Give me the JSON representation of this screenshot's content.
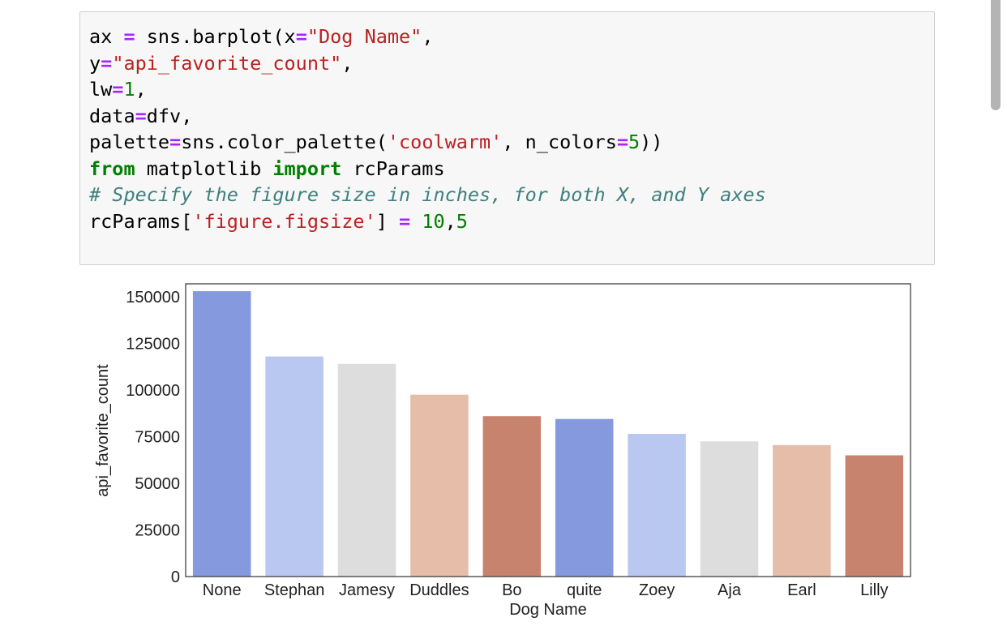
{
  "code_cell": {
    "lines": [
      [
        {
          "t": "ax "
        },
        {
          "t": "=",
          "c": "op"
        },
        {
          "t": " sns.barplot(x"
        },
        {
          "t": "=",
          "c": "op"
        },
        {
          "t": "\"Dog Name\"",
          "c": "str"
        },
        {
          "t": ","
        }
      ],
      [
        {
          "t": "y"
        },
        {
          "t": "=",
          "c": "op"
        },
        {
          "t": "\"api_favorite_count\"",
          "c": "str"
        },
        {
          "t": ","
        }
      ],
      [
        {
          "t": "lw"
        },
        {
          "t": "=",
          "c": "op"
        },
        {
          "t": "1",
          "c": "num"
        },
        {
          "t": ","
        }
      ],
      [
        {
          "t": "data"
        },
        {
          "t": "=",
          "c": "op"
        },
        {
          "t": "dfv,"
        }
      ],
      [
        {
          "t": "palette"
        },
        {
          "t": "=",
          "c": "op"
        },
        {
          "t": "sns.color_palette("
        },
        {
          "t": "'coolwarm'",
          "c": "str"
        },
        {
          "t": ", n_colors"
        },
        {
          "t": "=",
          "c": "op"
        },
        {
          "t": "5",
          "c": "num"
        },
        {
          "t": "))"
        }
      ],
      [
        {
          "t": "from",
          "c": "kw"
        },
        {
          "t": " matplotlib "
        },
        {
          "t": "import",
          "c": "kw"
        },
        {
          "t": " rcParams"
        }
      ],
      [
        {
          "t": "# Specify the figure size in inches, for both X, and Y axes",
          "c": "comment"
        }
      ],
      [
        {
          "t": "rcParams["
        },
        {
          "t": "'figure.figsize'",
          "c": "str"
        },
        {
          "t": "] "
        },
        {
          "t": "=",
          "c": "op"
        },
        {
          "t": " "
        },
        {
          "t": "10",
          "c": "num"
        },
        {
          "t": ","
        },
        {
          "t": "5",
          "c": "num"
        }
      ]
    ]
  },
  "chart_data": {
    "type": "bar",
    "title": "",
    "xlabel": "Dog Name",
    "ylabel": "api_favorite_count",
    "categories": [
      "None",
      "Stephan",
      "Jamesy",
      "Duddles",
      "Bo",
      "quite",
      "Zoey",
      "Aja",
      "Earl",
      "Lilly"
    ],
    "values": [
      153000,
      118000,
      114000,
      97500,
      86000,
      84500,
      76500,
      72500,
      70500,
      65000
    ],
    "colors": [
      "#8599de",
      "#b8c8f1",
      "#dddddd",
      "#e5bda8",
      "#c8836f",
      "#8599de",
      "#b8c8f1",
      "#dddddd",
      "#e5bda8",
      "#c8836f"
    ],
    "yticks": [
      0,
      25000,
      50000,
      75000,
      100000,
      125000,
      150000
    ],
    "ylim": [
      0,
      160000
    ],
    "grid": false,
    "legend": false
  }
}
